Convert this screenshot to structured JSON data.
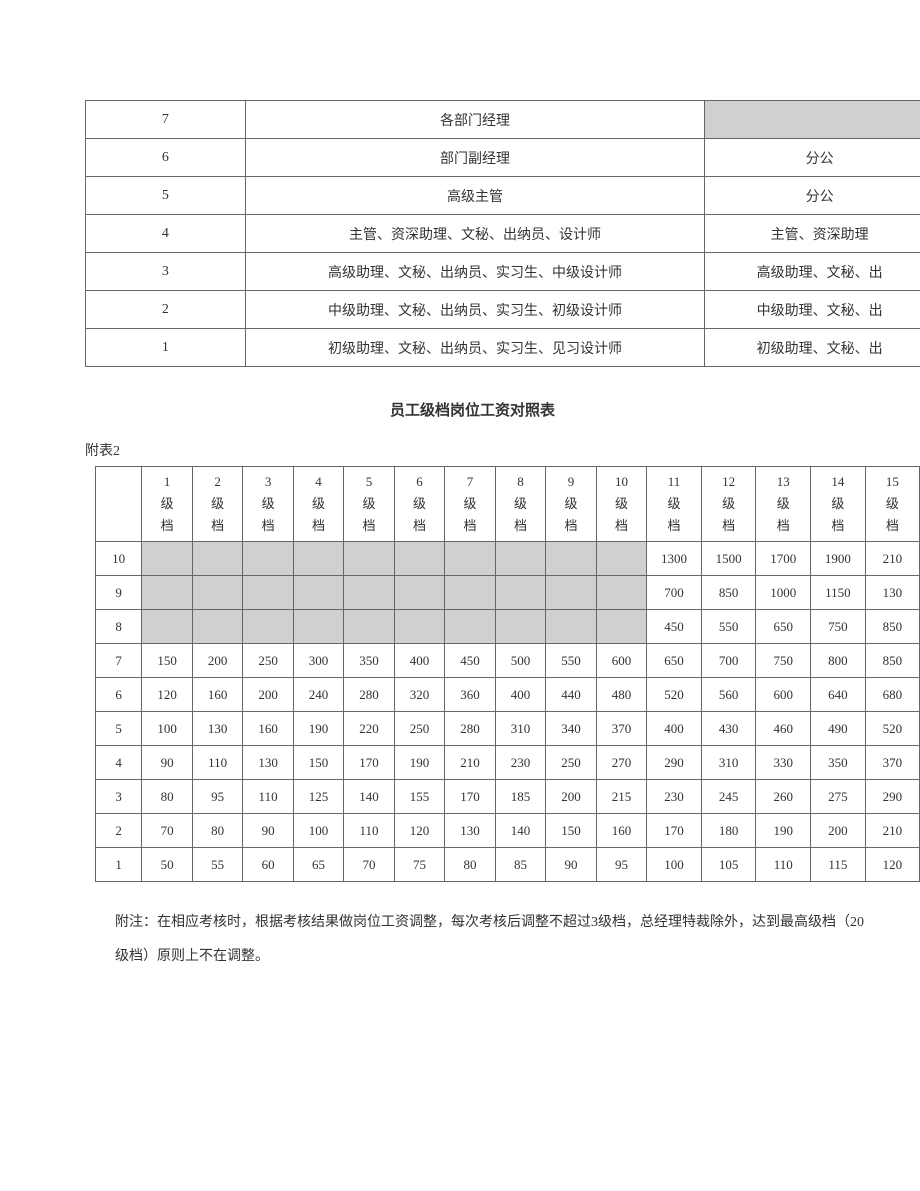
{
  "table1": {
    "rows": [
      {
        "level": "7",
        "mid": "各部门经理",
        "right": "",
        "shadedRight": true
      },
      {
        "level": "6",
        "mid": "部门副经理",
        "right": "分公",
        "shadedRight": false
      },
      {
        "level": "5",
        "mid": "高级主管",
        "right": "分公",
        "shadedRight": false
      },
      {
        "level": "4",
        "mid": "主管、资深助理、文秘、出纳员、设计师",
        "right": "主管、资深助理",
        "shadedRight": false
      },
      {
        "level": "3",
        "mid": "高级助理、文秘、出纳员、实习生、中级设计师",
        "right": "高级助理、文秘、出",
        "shadedRight": false
      },
      {
        "level": "2",
        "mid": "中级助理、文秘、出纳员、实习生、初级设计师",
        "right": "中级助理、文秘、出",
        "shadedRight": false
      },
      {
        "level": "1",
        "mid": "初级助理、文秘、出纳员、实习生、见习设计师",
        "right": "初级助理、文秘、出",
        "shadedRight": false
      }
    ]
  },
  "sectionTitle": "员工级档岗位工资对照表",
  "appendixLabel": "附表2",
  "table2": {
    "headerNumbers": [
      "1",
      "2",
      "3",
      "4",
      "5",
      "6",
      "7",
      "8",
      "9",
      "10",
      "11",
      "12",
      "13",
      "14",
      "15"
    ],
    "headerLine2": "级",
    "headerLine3": "档",
    "rows": [
      {
        "label": "10",
        "shadedUntil": 10,
        "cells": [
          "",
          "",
          "",
          "",
          "",
          "",
          "",
          "",
          "",
          "",
          "1300",
          "1500",
          "1700",
          "1900",
          "210"
        ]
      },
      {
        "label": "9",
        "shadedUntil": 10,
        "cells": [
          "",
          "",
          "",
          "",
          "",
          "",
          "",
          "",
          "",
          "",
          "700",
          "850",
          "1000",
          "1150",
          "130"
        ]
      },
      {
        "label": "8",
        "shadedUntil": 10,
        "cells": [
          "",
          "",
          "",
          "",
          "",
          "",
          "",
          "",
          "",
          "",
          "450",
          "550",
          "650",
          "750",
          "850"
        ]
      },
      {
        "label": "7",
        "shadedUntil": 0,
        "cells": [
          "150",
          "200",
          "250",
          "300",
          "350",
          "400",
          "450",
          "500",
          "550",
          "600",
          "650",
          "700",
          "750",
          "800",
          "850"
        ]
      },
      {
        "label": "6",
        "shadedUntil": 0,
        "cells": [
          "120",
          "160",
          "200",
          "240",
          "280",
          "320",
          "360",
          "400",
          "440",
          "480",
          "520",
          "560",
          "600",
          "640",
          "680"
        ]
      },
      {
        "label": "5",
        "shadedUntil": 0,
        "cells": [
          "100",
          "130",
          "160",
          "190",
          "220",
          "250",
          "280",
          "310",
          "340",
          "370",
          "400",
          "430",
          "460",
          "490",
          "520"
        ]
      },
      {
        "label": "4",
        "shadedUntil": 0,
        "cells": [
          "90",
          "110",
          "130",
          "150",
          "170",
          "190",
          "210",
          "230",
          "250",
          "270",
          "290",
          "310",
          "330",
          "350",
          "370"
        ]
      },
      {
        "label": "3",
        "shadedUntil": 0,
        "cells": [
          "80",
          "95",
          "110",
          "125",
          "140",
          "155",
          "170",
          "185",
          "200",
          "215",
          "230",
          "245",
          "260",
          "275",
          "290"
        ]
      },
      {
        "label": "2",
        "shadedUntil": 0,
        "cells": [
          "70",
          "80",
          "90",
          "100",
          "110",
          "120",
          "130",
          "140",
          "150",
          "160",
          "170",
          "180",
          "190",
          "200",
          "210"
        ]
      },
      {
        "label": "1",
        "shadedUntil": 0,
        "cells": [
          "50",
          "55",
          "60",
          "65",
          "70",
          "75",
          "80",
          "85",
          "90",
          "95",
          "100",
          "105",
          "110",
          "115",
          "120"
        ]
      }
    ]
  },
  "footnote": "附注：在相应考核时，根据考核结果做岗位工资调整，每次考核后调整不超过3级档，总经理特裁除外，达到最高级档（20级档）原则上不在调整。",
  "colors": {
    "shaded": "#d0d0d0",
    "border": "#666666",
    "text": "#333333",
    "background": "#ffffff"
  }
}
